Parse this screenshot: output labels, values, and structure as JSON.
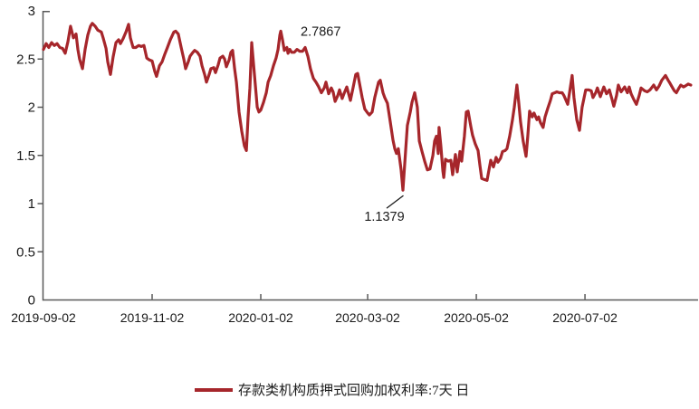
{
  "chart_data": {
    "type": "line",
    "title": "",
    "background": "#ffffff",
    "axis_color": "#595959",
    "text_color": "#1a1a1a",
    "grid": false,
    "x_axis": {
      "start_date": "2019-09-02",
      "unit": "days since 2019-09-02",
      "domain_days": [
        0,
        367.5
      ],
      "tick_days": [
        0,
        61,
        122,
        182,
        243,
        304
      ],
      "tick_labels": [
        "2019-09-02",
        "2019-11-02",
        "2020-01-02",
        "2020-03-02",
        "2020-05-02",
        "2020-07-02"
      ]
    },
    "y_axis": {
      "range": [
        0,
        3
      ],
      "ticks": [
        0,
        0.5,
        1,
        1.5,
        2,
        2.5,
        3
      ],
      "tick_labels": [
        "0",
        "0.5",
        "1",
        "1.5",
        "2",
        "2.5",
        "3"
      ]
    },
    "series": [
      {
        "name": "存款类机构质押式回购加权利率:7天 日",
        "color": "#A6262B",
        "line_width": 3.2,
        "points": [
          [
            0,
            2.6
          ],
          [
            1.5,
            2.66
          ],
          [
            3,
            2.62
          ],
          [
            4.6,
            2.67
          ],
          [
            6.1,
            2.64
          ],
          [
            7.6,
            2.66
          ],
          [
            9.2,
            2.62
          ],
          [
            10.7,
            2.61
          ],
          [
            12.2,
            2.56
          ],
          [
            13.7,
            2.68
          ],
          [
            15.2,
            2.84
          ],
          [
            16.8,
            2.72
          ],
          [
            18.3,
            2.76
          ],
          [
            19.3,
            2.6
          ],
          [
            20.3,
            2.5
          ],
          [
            21.9,
            2.4
          ],
          [
            23.4,
            2.6
          ],
          [
            24.9,
            2.75
          ],
          [
            26.4,
            2.84
          ],
          [
            27.4,
            2.87
          ],
          [
            29,
            2.84
          ],
          [
            30.5,
            2.8
          ],
          [
            32.5,
            2.78
          ],
          [
            33.5,
            2.72
          ],
          [
            35.1,
            2.61
          ],
          [
            36.1,
            2.47
          ],
          [
            37.6,
            2.34
          ],
          [
            39.1,
            2.52
          ],
          [
            40.7,
            2.67
          ],
          [
            42.2,
            2.7
          ],
          [
            43.2,
            2.66
          ],
          [
            44.7,
            2.71
          ],
          [
            46.3,
            2.78
          ],
          [
            47.8,
            2.86
          ],
          [
            48.8,
            2.72
          ],
          [
            50.3,
            2.62
          ],
          [
            51.8,
            2.62
          ],
          [
            53.4,
            2.64
          ],
          [
            54.9,
            2.63
          ],
          [
            56.4,
            2.64
          ],
          [
            58,
            2.51
          ],
          [
            59.5,
            2.49
          ],
          [
            61,
            2.48
          ],
          [
            62.5,
            2.37
          ],
          [
            63.5,
            2.32
          ],
          [
            65.1,
            2.43
          ],
          [
            66.6,
            2.47
          ],
          [
            68.1,
            2.55
          ],
          [
            69.6,
            2.62
          ],
          [
            71.2,
            2.7
          ],
          [
            73.2,
            2.78
          ],
          [
            74.2,
            2.79
          ],
          [
            75.7,
            2.76
          ],
          [
            77.3,
            2.62
          ],
          [
            78.8,
            2.5
          ],
          [
            79.8,
            2.4
          ],
          [
            81.3,
            2.47
          ],
          [
            82.3,
            2.53
          ],
          [
            83.9,
            2.57
          ],
          [
            84.9,
            2.59
          ],
          [
            86.4,
            2.57
          ],
          [
            87.9,
            2.53
          ],
          [
            89,
            2.43
          ],
          [
            90.5,
            2.34
          ],
          [
            91.5,
            2.26
          ],
          [
            93,
            2.34
          ],
          [
            94,
            2.4
          ],
          [
            95.6,
            2.41
          ],
          [
            96.6,
            2.36
          ],
          [
            98.1,
            2.44
          ],
          [
            99.1,
            2.51
          ],
          [
            100.7,
            2.53
          ],
          [
            101.7,
            2.5
          ],
          [
            102.7,
            2.42
          ],
          [
            104.2,
            2.49
          ],
          [
            105.2,
            2.57
          ],
          [
            106.2,
            2.59
          ],
          [
            107.3,
            2.4
          ],
          [
            108.3,
            2.26
          ],
          [
            109.8,
            1.95
          ],
          [
            111.3,
            1.75
          ],
          [
            112.8,
            1.6
          ],
          [
            113.9,
            1.55
          ],
          [
            114.9,
            1.9
          ],
          [
            115.9,
            2.2
          ],
          [
            116.9,
            2.67
          ],
          [
            117.9,
            2.45
          ],
          [
            119,
            2.22
          ],
          [
            120,
            2.0
          ],
          [
            121,
            1.95
          ],
          [
            122,
            1.97
          ],
          [
            123.5,
            2.05
          ],
          [
            125.1,
            2.15
          ],
          [
            126.1,
            2.26
          ],
          [
            127.6,
            2.33
          ],
          [
            129.1,
            2.43
          ],
          [
            130.6,
            2.51
          ],
          [
            131.7,
            2.6
          ],
          [
            132.7,
            2.75
          ],
          [
            133.2,
            2.79
          ],
          [
            134.2,
            2.7
          ],
          [
            135.2,
            2.59
          ],
          [
            136.7,
            2.62
          ],
          [
            137.3,
            2.56
          ],
          [
            138.3,
            2.6
          ],
          [
            139.3,
            2.57
          ],
          [
            140.8,
            2.57
          ],
          [
            142.3,
            2.6
          ],
          [
            143.9,
            2.58
          ],
          [
            145.4,
            2.58
          ],
          [
            146.9,
            2.62
          ],
          [
            148.4,
            2.53
          ],
          [
            149.9,
            2.4
          ],
          [
            151.5,
            2.3
          ],
          [
            153,
            2.26
          ],
          [
            154.5,
            2.21
          ],
          [
            156,
            2.15
          ],
          [
            157.6,
            2.2
          ],
          [
            158.6,
            2.26
          ],
          [
            160.1,
            2.14
          ],
          [
            161.6,
            2.2
          ],
          [
            162.6,
            2.16
          ],
          [
            163.7,
            2.06
          ],
          [
            165.2,
            2.12
          ],
          [
            166.2,
            2.18
          ],
          [
            167.7,
            2.09
          ],
          [
            168.7,
            2.14
          ],
          [
            170.3,
            2.21
          ],
          [
            172.3,
            2.07
          ],
          [
            173.8,
            2.2
          ],
          [
            175.3,
            2.34
          ],
          [
            176.4,
            2.35
          ],
          [
            177.9,
            2.2
          ],
          [
            178.9,
            2.1
          ],
          [
            180.4,
            1.98
          ],
          [
            182,
            1.94
          ],
          [
            183,
            1.92
          ],
          [
            184.5,
            1.95
          ],
          [
            186,
            2.1
          ],
          [
            188.1,
            2.26
          ],
          [
            189.1,
            2.28
          ],
          [
            190.6,
            2.15
          ],
          [
            191.6,
            2.1
          ],
          [
            193.1,
            2.04
          ],
          [
            194.7,
            1.85
          ],
          [
            196.2,
            1.66
          ],
          [
            197.2,
            1.57
          ],
          [
            198.2,
            1.52
          ],
          [
            199.2,
            1.57
          ],
          [
            200.8,
            1.35
          ],
          [
            201.8,
            1.14
          ],
          [
            203.3,
            1.55
          ],
          [
            204.3,
            1.81
          ],
          [
            205.9,
            1.95
          ],
          [
            206.9,
            2.05
          ],
          [
            208.4,
            2.15
          ],
          [
            209.9,
            2.0
          ],
          [
            211,
            1.65
          ],
          [
            212.5,
            1.54
          ],
          [
            214,
            1.44
          ],
          [
            215.5,
            1.35
          ],
          [
            217,
            1.36
          ],
          [
            218.6,
            1.5
          ],
          [
            219.6,
            1.65
          ],
          [
            220.6,
            1.7
          ],
          [
            221.6,
            1.52
          ],
          [
            222.1,
            1.79
          ],
          [
            223.1,
            1.6
          ],
          [
            224.2,
            1.34
          ],
          [
            224.7,
            1.27
          ],
          [
            225.7,
            1.46
          ],
          [
            227.2,
            1.44
          ],
          [
            228.7,
            1.45
          ],
          [
            229.7,
            1.3
          ],
          [
            231.3,
            1.51
          ],
          [
            232.3,
            1.33
          ],
          [
            233.8,
            1.54
          ],
          [
            234.8,
            1.44
          ],
          [
            236.3,
            1.7
          ],
          [
            237.4,
            1.95
          ],
          [
            238.4,
            1.96
          ],
          [
            239.9,
            1.8
          ],
          [
            240.9,
            1.71
          ],
          [
            242.4,
            1.62
          ],
          [
            244,
            1.55
          ],
          [
            245,
            1.4
          ],
          [
            246,
            1.26
          ],
          [
            247.5,
            1.25
          ],
          [
            249,
            1.24
          ],
          [
            251.1,
            1.45
          ],
          [
            252.6,
            1.38
          ],
          [
            254.1,
            1.48
          ],
          [
            255.1,
            1.43
          ],
          [
            256.6,
            1.47
          ],
          [
            257.7,
            1.54
          ],
          [
            259.2,
            1.55
          ],
          [
            260.2,
            1.57
          ],
          [
            261.7,
            1.7
          ],
          [
            263.3,
            1.87
          ],
          [
            264.3,
            2.0
          ],
          [
            265.8,
            2.23
          ],
          [
            266.8,
            2.05
          ],
          [
            267.8,
            1.85
          ],
          [
            269.3,
            1.65
          ],
          [
            270.9,
            1.49
          ],
          [
            271.9,
            1.7
          ],
          [
            272.9,
            1.96
          ],
          [
            274.4,
            1.9
          ],
          [
            275.4,
            1.94
          ],
          [
            277,
            1.87
          ],
          [
            278,
            1.9
          ],
          [
            279,
            1.84
          ],
          [
            280.5,
            1.79
          ],
          [
            281.6,
            1.9
          ],
          [
            283.1,
            1.99
          ],
          [
            284.6,
            2.07
          ],
          [
            285.6,
            2.14
          ],
          [
            287.1,
            2.15
          ],
          [
            288.2,
            2.16
          ],
          [
            289.7,
            2.15
          ],
          [
            291.2,
            2.15
          ],
          [
            292.2,
            2.12
          ],
          [
            294.3,
            2.03
          ],
          [
            295.3,
            2.15
          ],
          [
            296.8,
            2.33
          ],
          [
            297.8,
            2.1
          ],
          [
            299.4,
            1.87
          ],
          [
            300.9,
            1.76
          ],
          [
            302.4,
            2.0
          ],
          [
            304.4,
            2.18
          ],
          [
            306,
            2.18
          ],
          [
            307.5,
            2.17
          ],
          [
            308.5,
            2.1
          ],
          [
            310,
            2.15
          ],
          [
            311,
            2.2
          ],
          [
            312.6,
            2.11
          ],
          [
            314.6,
            2.21
          ],
          [
            316.1,
            2.14
          ],
          [
            317.7,
            2.18
          ],
          [
            319.2,
            2.08
          ],
          [
            320.2,
            2.01
          ],
          [
            321.7,
            2.12
          ],
          [
            322.7,
            2.23
          ],
          [
            324.3,
            2.16
          ],
          [
            326.3,
            2.21
          ],
          [
            327.8,
            2.15
          ],
          [
            328.8,
            2.21
          ],
          [
            329.9,
            2.14
          ],
          [
            331.4,
            2.08
          ],
          [
            332.9,
            2.03
          ],
          [
            334.4,
            2.12
          ],
          [
            335.5,
            2.2
          ],
          [
            337.5,
            2.17
          ],
          [
            339,
            2.16
          ],
          [
            340.5,
            2.18
          ],
          [
            342.6,
            2.23
          ],
          [
            344.1,
            2.18
          ],
          [
            345.6,
            2.22
          ],
          [
            347.1,
            2.28
          ],
          [
            349.2,
            2.33
          ],
          [
            350.7,
            2.28
          ],
          [
            351.7,
            2.25
          ],
          [
            353.2,
            2.2
          ],
          [
            354.2,
            2.17
          ],
          [
            355.3,
            2.15
          ],
          [
            356.8,
            2.2
          ],
          [
            357.8,
            2.23
          ],
          [
            359.3,
            2.21
          ],
          [
            360.3,
            2.22
          ],
          [
            361.9,
            2.24
          ],
          [
            363.4,
            2.23
          ]
        ]
      }
    ],
    "annotations": [
      {
        "label": "2.7867",
        "day": 133.2,
        "value": 2.79,
        "placement": "right-of-peak",
        "leader": false
      },
      {
        "label": "1.1379",
        "day": 201.8,
        "value": 1.14,
        "placement": "below-left",
        "leader": true
      }
    ],
    "legend": {
      "position": "bottom-center",
      "label": "存款类机构质押式回购加权利率:7天 日",
      "swatch_color": "#A6262B"
    }
  }
}
